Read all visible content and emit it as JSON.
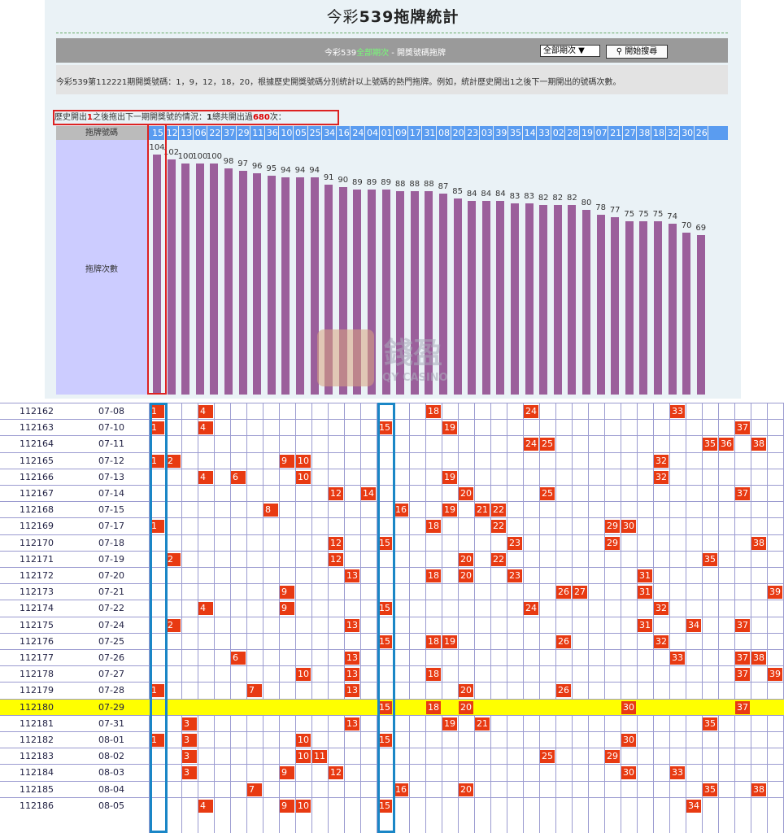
{
  "page": {
    "title_prefix": "今彩",
    "title_main": "539拖牌統計"
  },
  "toolbar": {
    "text_prefix": "今彩539",
    "text_link": "全部期次",
    "text_suffix": " - 開獎號碼拖牌",
    "period_select": "全部期次 ▼",
    "search_label": "⚲ 開始搜尋"
  },
  "description": "今彩539第112221期開獎號碼：1，9，12，18，20，根據歷史開獎號碼分別統計以上號碼的熱門拖牌。例如，統計歷史開出1之後下一期開出的號碼次數。",
  "stat": {
    "p1": "歷史開出",
    "n1": "1",
    "p2": "之後拖出下一期開獎號的情況：",
    "n2": "1",
    "p3": "總共開出過",
    "n3": "680",
    "p4": "次："
  },
  "table": {
    "header_label": "拖牌號碼",
    "count_label": "拖牌次數"
  },
  "watermark": {
    "cn": "錢盈",
    "en": "QY CASINO"
  },
  "chart_data": {
    "type": "bar",
    "title": "歷史開出1之後拖出下一期開獎號的情況",
    "categories": [
      "15",
      "12",
      "13",
      "06",
      "22",
      "37",
      "29",
      "11",
      "36",
      "10",
      "05",
      "25",
      "34",
      "16",
      "24",
      "04",
      "01",
      "09",
      "17",
      "31",
      "08",
      "20",
      "23",
      "03",
      "39",
      "35",
      "14",
      "33",
      "02",
      "28",
      "19",
      "07",
      "21",
      "27",
      "38",
      "18",
      "32",
      "30",
      "26"
    ],
    "values": [
      104,
      102,
      100,
      100,
      100,
      98,
      97,
      96,
      95,
      94,
      94,
      94,
      91,
      90,
      89,
      89,
      89,
      88,
      88,
      88,
      87,
      85,
      84,
      84,
      84,
      83,
      83,
      82,
      82,
      82,
      80,
      78,
      77,
      75,
      75,
      75,
      74,
      70,
      69
    ],
    "ylabel": "拖牌次數",
    "xlabel": "拖牌號碼",
    "highlight": "15"
  },
  "draws": [
    {
      "period": "112162",
      "date": "07-08",
      "nums": [
        "1",
        "4",
        "18",
        "24",
        "33"
      ]
    },
    {
      "period": "112163",
      "date": "07-10",
      "nums": [
        "1",
        "4",
        "15",
        "19",
        "37"
      ]
    },
    {
      "period": "112164",
      "date": "07-11",
      "nums": [
        "24",
        "25",
        "35",
        "36",
        "38"
      ]
    },
    {
      "period": "112165",
      "date": "07-12",
      "nums": [
        "1",
        "2",
        "9",
        "10",
        "32"
      ]
    },
    {
      "period": "112166",
      "date": "07-13",
      "nums": [
        "4",
        "6",
        "10",
        "19",
        "32"
      ]
    },
    {
      "period": "112167",
      "date": "07-14",
      "nums": [
        "12",
        "14",
        "20",
        "25",
        "37"
      ]
    },
    {
      "period": "112168",
      "date": "07-15",
      "nums": [
        "8",
        "16",
        "19",
        "21",
        "22"
      ]
    },
    {
      "period": "112169",
      "date": "07-17",
      "nums": [
        "1",
        "18",
        "22",
        "29",
        "30"
      ]
    },
    {
      "period": "112170",
      "date": "07-18",
      "nums": [
        "12",
        "15",
        "23",
        "29",
        "38"
      ]
    },
    {
      "period": "112171",
      "date": "07-19",
      "nums": [
        "2",
        "12",
        "20",
        "22",
        "35"
      ]
    },
    {
      "period": "112172",
      "date": "07-20",
      "nums": [
        "13",
        "18",
        "20",
        "23",
        "31"
      ]
    },
    {
      "period": "112173",
      "date": "07-21",
      "nums": [
        "9",
        "26",
        "27",
        "31",
        "39"
      ]
    },
    {
      "period": "112174",
      "date": "07-22",
      "nums": [
        "4",
        "9",
        "15",
        "24",
        "32"
      ]
    },
    {
      "period": "112175",
      "date": "07-24",
      "nums": [
        "2",
        "13",
        "31",
        "34",
        "37"
      ]
    },
    {
      "period": "112176",
      "date": "07-25",
      "nums": [
        "15",
        "18",
        "19",
        "26",
        "32"
      ]
    },
    {
      "period": "112177",
      "date": "07-26",
      "nums": [
        "6",
        "13",
        "33",
        "37",
        "38"
      ]
    },
    {
      "period": "112178",
      "date": "07-27",
      "nums": [
        "10",
        "13",
        "18",
        "37",
        "39"
      ]
    },
    {
      "period": "112179",
      "date": "07-28",
      "nums": [
        "1",
        "7",
        "13",
        "20",
        "26"
      ]
    },
    {
      "period": "112180",
      "date": "07-29",
      "nums": [
        "15",
        "18",
        "20",
        "30",
        "37"
      ],
      "highlight": true
    },
    {
      "period": "112181",
      "date": "07-31",
      "nums": [
        "3",
        "13",
        "19",
        "21",
        "35"
      ]
    },
    {
      "period": "112182",
      "date": "08-01",
      "nums": [
        "1",
        "3",
        "10",
        "15",
        "30"
      ]
    },
    {
      "period": "112183",
      "date": "08-02",
      "nums": [
        "3",
        "10",
        "11",
        "25",
        "29"
      ]
    },
    {
      "period": "112184",
      "date": "08-03",
      "nums": [
        "3",
        "9",
        "12",
        "30",
        "33"
      ]
    },
    {
      "period": "112185",
      "date": "08-04",
      "nums": [
        "7",
        "16",
        "20",
        "35",
        "38"
      ]
    },
    {
      "period": "112186",
      "date": "08-05",
      "nums": [
        "4",
        "9",
        "10",
        "15",
        "34"
      ]
    }
  ]
}
